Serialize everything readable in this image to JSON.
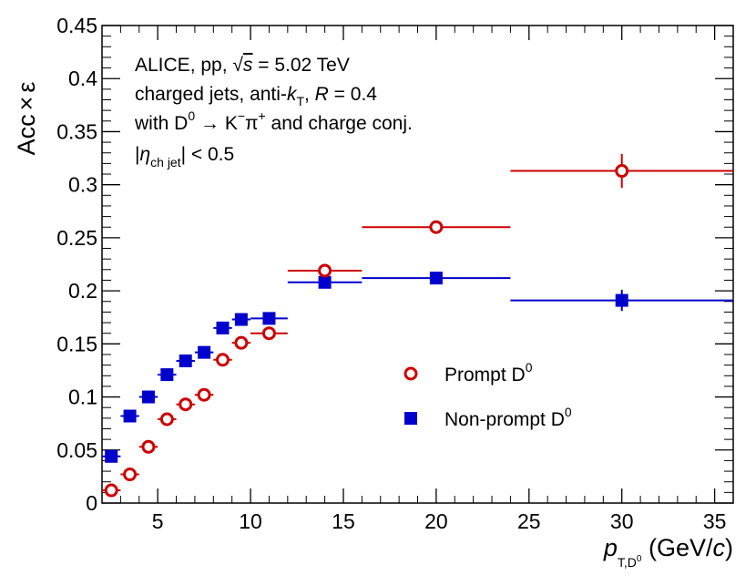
{
  "chart_data": {
    "type": "scatter",
    "title": "",
    "xlabel": "p_T,D0 (GeV/c)",
    "ylabel": "Acc × ε",
    "xlim": [
      2,
      36
    ],
    "ylim": [
      0,
      0.45
    ],
    "x_ticks": [
      5,
      10,
      15,
      20,
      25,
      30,
      35
    ],
    "y_ticks": [
      0,
      0.05,
      0.1,
      0.15,
      0.2,
      0.25,
      0.3,
      0.35,
      0.4,
      0.45
    ],
    "y_tick_labels": [
      "0",
      "0.05",
      "0.1",
      "0.15",
      "0.2",
      "0.25",
      "0.3",
      "0.35",
      "0.4",
      "0.45"
    ],
    "grid": false,
    "legend_position": "center-right",
    "annotations": {
      "line1_prefix": "ALICE, pp, ",
      "line1_sqrt": "√",
      "line1_s": "s",
      "line1_suffix": " = 5.02 TeV",
      "line2_prefix": "charged jets, anti-",
      "line2_k": "k",
      "line2_sub": "T",
      "line2_mid": ", ",
      "line2_R": "R",
      "line2_suffix": " = 0.4",
      "line3_prefix": "with D",
      "line3_sup0": "0",
      "line3_arrow": " → K",
      "line3_minus": "−",
      "line3_pi": "π",
      "line3_plus": "+",
      "line3_suffix": " and charge conj.",
      "line4_bar1": "|",
      "line4_eta": "η",
      "line4_sub": "ch jet",
      "line4_suffix": "| < 0.5"
    },
    "axis_title_parts": {
      "y_acc": "Acc",
      "y_times": "×",
      "y_eps": "ε",
      "x_p": "p",
      "x_sub": "T,D",
      "x_sub_sup": "0",
      "x_units_open": " (GeV/",
      "x_units_c": "c",
      "x_units_close": ")"
    },
    "series": [
      {
        "name": "Prompt D0",
        "legend_label": "Prompt D",
        "legend_sup": "0",
        "marker": "open-circle",
        "color": "#cc0000",
        "points": [
          {
            "x": 2.5,
            "xlo": 2,
            "xhi": 3,
            "y": 0.012,
            "yerr": 0.003
          },
          {
            "x": 3.5,
            "xlo": 3,
            "xhi": 4,
            "y": 0.027,
            "yerr": 0.002
          },
          {
            "x": 4.5,
            "xlo": 4,
            "xhi": 5,
            "y": 0.053,
            "yerr": 0.003
          },
          {
            "x": 5.5,
            "xlo": 5,
            "xhi": 6,
            "y": 0.079,
            "yerr": 0.003
          },
          {
            "x": 6.5,
            "xlo": 6,
            "xhi": 7,
            "y": 0.093,
            "yerr": 0.003
          },
          {
            "x": 7.5,
            "xlo": 7,
            "xhi": 8,
            "y": 0.102,
            "yerr": 0.003
          },
          {
            "x": 8.5,
            "xlo": 8,
            "xhi": 9,
            "y": 0.135,
            "yerr": 0.003
          },
          {
            "x": 9.5,
            "xlo": 9,
            "xhi": 10,
            "y": 0.151,
            "yerr": 0.003
          },
          {
            "x": 11,
            "xlo": 10,
            "xhi": 12,
            "y": 0.16,
            "yerr": 0.003
          },
          {
            "x": 14,
            "xlo": 12,
            "xhi": 16,
            "y": 0.219,
            "yerr": 0.004
          },
          {
            "x": 20,
            "xlo": 16,
            "xhi": 24,
            "y": 0.26,
            "yerr": 0.005
          },
          {
            "x": 30,
            "xlo": 24,
            "xhi": 36,
            "y": 0.313,
            "yerr": 0.016
          }
        ]
      },
      {
        "name": "Non-prompt D0",
        "legend_label": "Non-prompt D",
        "legend_sup": "0",
        "marker": "filled-square",
        "color": "#0000cc",
        "points": [
          {
            "x": 2.5,
            "xlo": 2,
            "xhi": 3,
            "y": 0.044,
            "yerr": 0.004
          },
          {
            "x": 3.5,
            "xlo": 3,
            "xhi": 4,
            "y": 0.082,
            "yerr": 0.003
          },
          {
            "x": 4.5,
            "xlo": 4,
            "xhi": 5,
            "y": 0.1,
            "yerr": 0.003
          },
          {
            "x": 5.5,
            "xlo": 5,
            "xhi": 6,
            "y": 0.121,
            "yerr": 0.003
          },
          {
            "x": 6.5,
            "xlo": 6,
            "xhi": 7,
            "y": 0.134,
            "yerr": 0.003
          },
          {
            "x": 7.5,
            "xlo": 7,
            "xhi": 8,
            "y": 0.142,
            "yerr": 0.003
          },
          {
            "x": 8.5,
            "xlo": 8,
            "xhi": 9,
            "y": 0.165,
            "yerr": 0.003
          },
          {
            "x": 9.5,
            "xlo": 9,
            "xhi": 10,
            "y": 0.173,
            "yerr": 0.003
          },
          {
            "x": 11,
            "xlo": 10,
            "xhi": 12,
            "y": 0.174,
            "yerr": 0.003
          },
          {
            "x": 14,
            "xlo": 12,
            "xhi": 16,
            "y": 0.208,
            "yerr": 0.004
          },
          {
            "x": 20,
            "xlo": 16,
            "xhi": 24,
            "y": 0.212,
            "yerr": 0.004
          },
          {
            "x": 30,
            "xlo": 24,
            "xhi": 36,
            "y": 0.191,
            "yerr": 0.01
          }
        ]
      }
    ]
  }
}
